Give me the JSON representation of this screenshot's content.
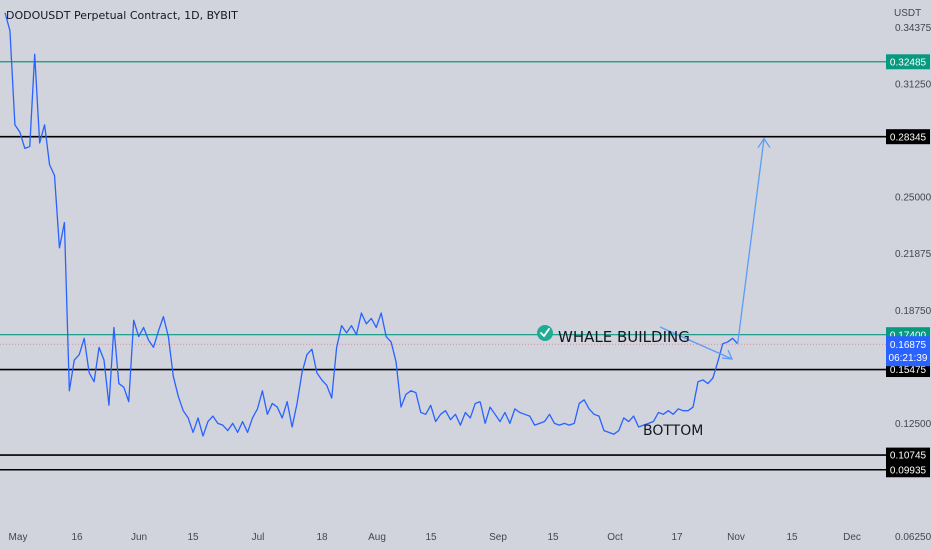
{
  "header": {
    "title": "DODOUSDT Perpetual Contract, 1D, BYBIT",
    "unit": "USDT"
  },
  "chart_data": {
    "type": "line",
    "title": "DODOUSDT Perpetual Contract, 1D, BYBIT",
    "ylabel": "USDT",
    "ylim": [
      0.055,
      0.359
    ],
    "x_ticks": [
      "May",
      "16",
      "Jun",
      "15",
      "Jul",
      "18",
      "Aug",
      "15",
      "Sep",
      "15",
      "Oct",
      "17",
      "Nov",
      "15",
      "Dec"
    ],
    "y_ticks": [
      "0.34375",
      "0.31250",
      "0.25000",
      "0.21875",
      "0.18750",
      "0.12500",
      "0.06250"
    ],
    "current_price": "0.16875",
    "countdown": "06:21:39",
    "series": [
      {
        "color": "#2962ff",
        "x": [
          0,
          2,
          4,
          6,
          8,
          10,
          12,
          14,
          16,
          18,
          20,
          22,
          24,
          26,
          28,
          30,
          32,
          34,
          36,
          38,
          40,
          42,
          44,
          46,
          48,
          50,
          52,
          54,
          56,
          58,
          60,
          62,
          64,
          66,
          68,
          70,
          72,
          74,
          76,
          78,
          80,
          82,
          84,
          86,
          88,
          90,
          92,
          94,
          96,
          98,
          100,
          102,
          104,
          106,
          108,
          110,
          112,
          114,
          116,
          118,
          120,
          122,
          124,
          126,
          128,
          130,
          132,
          134,
          136,
          138,
          140,
          142,
          144,
          146,
          148,
          150,
          152,
          154,
          156,
          158,
          160,
          162,
          164,
          166,
          168,
          170,
          172,
          174,
          176,
          178,
          180,
          182,
          184,
          186,
          188,
          190,
          192
        ],
        "y": [
          0.352,
          0.342,
          0.29,
          0.286,
          0.277,
          0.278,
          0.329,
          0.28,
          0.29,
          0.268,
          0.262,
          0.222,
          0.236,
          0.143,
          0.16,
          0.163,
          0.172,
          0.153,
          0.148,
          0.167,
          0.16,
          0.135,
          0.178,
          0.147,
          0.145,
          0.137,
          0.182,
          0.173,
          0.178,
          0.171,
          0.167,
          0.176,
          0.184,
          0.173,
          0.151,
          0.14,
          0.132,
          0.128,
          0.12,
          0.128,
          0.118,
          0.126,
          0.129,
          0.125,
          0.124,
          0.121,
          0.125,
          0.12,
          0.126,
          0.12,
          0.128,
          0.133,
          0.143,
          0.13,
          0.136,
          0.134,
          0.128,
          0.137,
          0.123,
          0.136,
          0.153,
          0.163,
          0.166,
          0.153,
          0.149,
          0.146,
          0.139,
          0.167,
          0.179,
          0.175,
          0.179,
          0.174,
          0.186,
          0.18,
          0.183,
          0.178,
          0.186,
          0.173,
          0.17,
          0.159,
          0.134,
          0.141,
          0.143,
          0.142,
          0.131,
          0.13,
          0.135,
          0.126,
          0.13,
          0.132,
          0.127,
          0.13,
          0.124,
          0.131,
          0.128,
          0.136,
          0.137
        ]
      },
      {
        "color": "#2962ff",
        "x": [
          192,
          194,
          196,
          198,
          200,
          202,
          204,
          206,
          208,
          210,
          212,
          214,
          216,
          218,
          220,
          222,
          224,
          226,
          228,
          230,
          232,
          234,
          236,
          238,
          240,
          242,
          244,
          246,
          248,
          250,
          252,
          254,
          256,
          258,
          260,
          262,
          264,
          266,
          268,
          270,
          272,
          274,
          276,
          278,
          280,
          282,
          284,
          286,
          288,
          290,
          292,
          294,
          296
        ],
        "y": [
          0.137,
          0.125,
          0.134,
          0.13,
          0.126,
          0.131,
          0.125,
          0.133,
          0.131,
          0.13,
          0.129,
          0.124,
          0.125,
          0.126,
          0.13,
          0.125,
          0.124,
          0.125,
          0.124,
          0.125,
          0.136,
          0.138,
          0.133,
          0.13,
          0.129,
          0.121,
          0.12,
          0.119,
          0.121,
          0.128,
          0.126,
          0.129,
          0.123,
          0.124,
          0.125,
          0.126,
          0.131,
          0.13,
          0.132,
          0.13,
          0.133,
          0.132,
          0.132,
          0.134,
          0.148,
          0.149,
          0.147,
          0.15,
          0.159,
          0.169,
          0.17,
          0.172,
          0.169
        ]
      }
    ],
    "horizontal_levels": [
      {
        "price": 0.32485,
        "label": "0.32485",
        "color": "#089981"
      },
      {
        "price": 0.28345,
        "label": "0.28345",
        "color": "#000000"
      },
      {
        "price": 0.174,
        "label": "0.17400",
        "color": "#089981"
      },
      {
        "price": 0.15475,
        "label": "0.15475",
        "color": "#000000"
      },
      {
        "price": 0.10745,
        "label": "0.10745",
        "color": "#000000"
      },
      {
        "price": 0.09935,
        "label": "0.09935",
        "color": "#000000"
      }
    ],
    "annotations": [
      {
        "text": "WHALE BUILDING",
        "kind": "label-with-check"
      },
      {
        "text": "BOTTOM",
        "kind": "label"
      }
    ],
    "projection": {
      "from_price": 0.16875,
      "to_price": 0.28345,
      "color": "#5b9cf6"
    }
  },
  "colors": {
    "background": "#d1d4dc",
    "line": "#2962ff",
    "teal_level": "#089981",
    "black_level": "#000000",
    "current_price_badge": "#2962ff",
    "check_badge": "#22ab94"
  }
}
